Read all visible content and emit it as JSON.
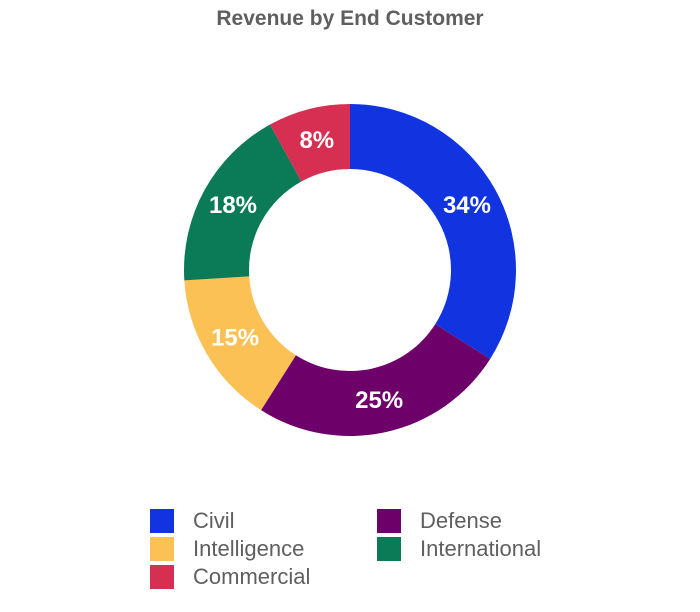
{
  "chart_data": {
    "type": "pie",
    "donut": true,
    "title": "Revenue by End Customer",
    "categories": [
      "Civil",
      "Defense",
      "Intelligence",
      "International",
      "Commercial"
    ],
    "values": [
      34,
      25,
      15,
      18,
      8
    ],
    "value_labels": [
      "34%",
      "25%",
      "15%",
      "18%",
      "8%"
    ],
    "colors": [
      "#1133e0",
      "#6e006a",
      "#fbc154",
      "#0a7a57",
      "#d62f51"
    ],
    "legend_position": "bottom"
  },
  "legend": {
    "items": [
      {
        "label": "Civil",
        "color": "#1133e0"
      },
      {
        "label": "Defense",
        "color": "#6e006a"
      },
      {
        "label": "Intelligence",
        "color": "#fbc154"
      },
      {
        "label": "International",
        "color": "#0a7a57"
      },
      {
        "label": "Commercial",
        "color": "#d62f51"
      }
    ]
  }
}
